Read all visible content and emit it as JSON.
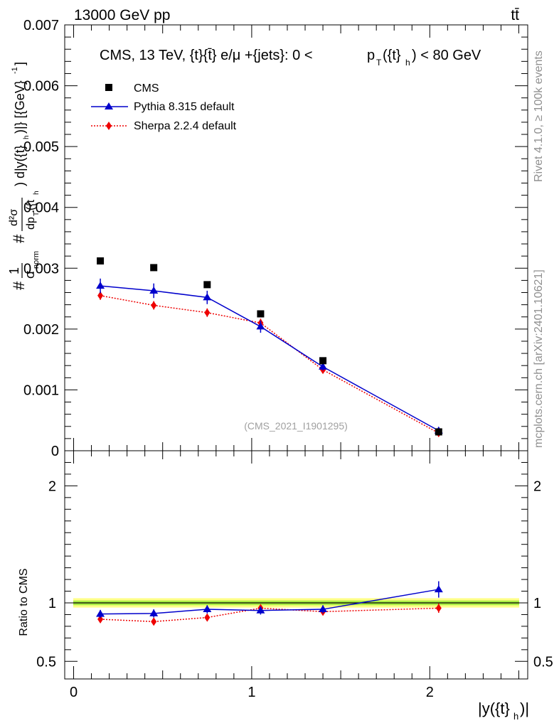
{
  "header": {
    "energy_label": "13000 GeV pp",
    "process_label": "tt̄"
  },
  "side": {
    "rivet_label": "Rivet 4.1.0, ≥ 100k events",
    "source_label": "mcplots.cern.ch [arXiv:2401.10621]"
  },
  "chart_data": {
    "type": "scatter",
    "title": "CMS, 13 TeV, {t}{t̄} e/μ +{jets}: 0 < p_T({t}_h) < 80 GeV",
    "title_parts": {
      "main": "CMS, 13 TeV, {t}{t̄} e/μ +{jets}: 0 < ",
      "pt": "p",
      "pt_sub": "T",
      "mid": "({t}",
      "mid_sub": "h",
      "end": ") < 80 GeV"
    },
    "analysis_label": "(CMS_2021_I1901295)",
    "xlabel": "|y({t}_h)|",
    "ylabel": "1/σ_norm d²σ / dp_T({t}_h) d|y({t}_h)| [GeV⁻¹]",
    "ratio_ylabel": "Ratio to CMS",
    "xlim": [
      -0.05,
      2.55
    ],
    "ylim": [
      0,
      0.007
    ],
    "ratio_ylim": [
      0.35,
      2.3
    ],
    "x_ticks": [
      0,
      1,
      2
    ],
    "x_tick_labels": [
      "0",
      "1",
      "2"
    ],
    "y_ticks": [
      0,
      0.001,
      0.002,
      0.003,
      0.004,
      0.005,
      0.006,
      0.007
    ],
    "y_tick_labels": [
      "0",
      "0.001",
      "0.002",
      "0.003",
      "0.004",
      "0.005",
      "0.006",
      "0.007"
    ],
    "ratio_ticks": [
      0.5,
      1,
      2
    ],
    "ratio_tick_labels": [
      "0.5",
      "1",
      "2"
    ],
    "bins": [
      [
        0.0,
        0.3
      ],
      [
        0.3,
        0.6
      ],
      [
        0.6,
        0.9
      ],
      [
        0.9,
        1.2
      ],
      [
        1.2,
        1.6
      ],
      [
        1.6,
        2.5
      ]
    ],
    "x": [
      0.15,
      0.45,
      0.75,
      1.05,
      1.4,
      2.05
    ],
    "series": [
      {
        "name": "CMS",
        "color": "#000000",
        "marker": "square",
        "values": [
          0.00312,
          0.00301,
          0.00273,
          0.00225,
          0.00148,
          0.00031
        ]
      },
      {
        "name": "Pythia 8.315 default",
        "color": "#0000cc",
        "marker": "triangle",
        "line": "solid",
        "values": [
          0.00271,
          0.00263,
          0.00252,
          0.00204,
          0.00138,
          0.00033
        ],
        "errors": [
          0.00012,
          0.00012,
          0.00011,
          0.0001,
          6e-05,
          2e-05
        ],
        "ratio": [
          0.905,
          0.91,
          0.945,
          0.935,
          0.945,
          1.115
        ],
        "ratio_errors": [
          0.035,
          0.035,
          0.035,
          0.035,
          0.035,
          0.07
        ]
      },
      {
        "name": "Sherpa 2.2.4 default",
        "color": "#ee0000",
        "marker": "diamond",
        "line": "dotted",
        "values": [
          0.00255,
          0.00239,
          0.00227,
          0.0021,
          0.00133,
          0.00029
        ],
        "errors": [
          7e-05,
          7e-05,
          7e-05,
          7e-05,
          5e-05,
          2e-05
        ],
        "ratio": [
          0.86,
          0.84,
          0.875,
          0.955,
          0.925,
          0.955
        ],
        "ratio_errors": [
          0.025,
          0.025,
          0.025,
          0.025,
          0.03,
          0.04
        ]
      }
    ],
    "band": {
      "center": 1.0,
      "inner": 0.02,
      "outer": 0.04,
      "inner_color": "#aaee44",
      "outer_color": "#ffff88"
    }
  }
}
